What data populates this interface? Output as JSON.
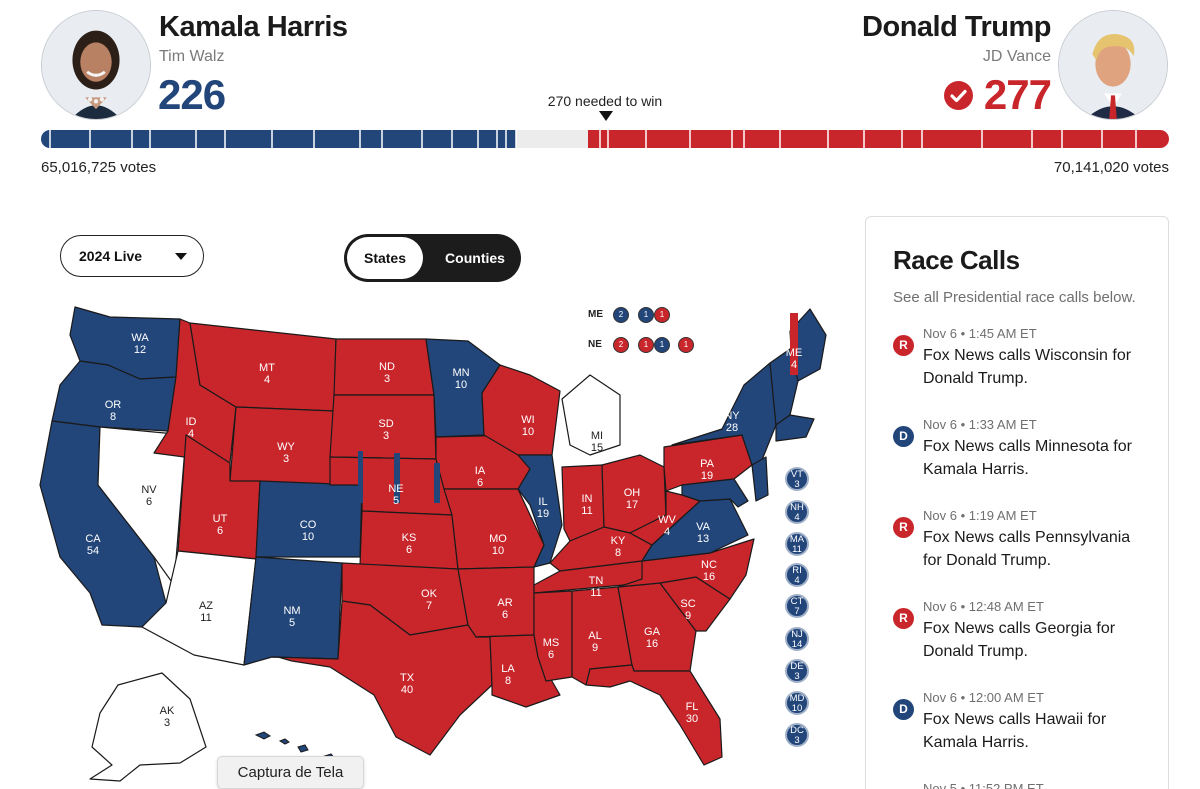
{
  "colors": {
    "dem": "#22457a",
    "rep": "#c9262c",
    "uncalled": "#ffffff"
  },
  "header": {
    "dem": {
      "name": "Kamala Harris",
      "running_mate": "Tim Walz",
      "electoral_votes": "226",
      "popular_votes": "65,016,725 votes"
    },
    "rep": {
      "name": "Donald Trump",
      "running_mate": "JD Vance",
      "electoral_votes": "277",
      "popular_votes": "70,141,020 votes",
      "winner_icon": "check-circle-icon"
    },
    "needed_to_win": "270 needed to win",
    "progress": {
      "dem_share": 0.4209,
      "rep_share": 0.5149
    }
  },
  "controls": {
    "year_dropdown": "2024 Live",
    "toggle": {
      "states": "States",
      "counties": "Counties",
      "selected": "States"
    }
  },
  "map": {
    "states": [
      {
        "abbr": "WA",
        "ev": "12",
        "party": "D"
      },
      {
        "abbr": "OR",
        "ev": "8",
        "party": "D"
      },
      {
        "abbr": "CA",
        "ev": "54",
        "party": "D"
      },
      {
        "abbr": "NV",
        "ev": "6",
        "party": "U"
      },
      {
        "abbr": "ID",
        "ev": "4",
        "party": "R"
      },
      {
        "abbr": "MT",
        "ev": "4",
        "party": "R"
      },
      {
        "abbr": "WY",
        "ev": "3",
        "party": "R"
      },
      {
        "abbr": "UT",
        "ev": "6",
        "party": "R"
      },
      {
        "abbr": "AZ",
        "ev": "11",
        "party": "U"
      },
      {
        "abbr": "CO",
        "ev": "10",
        "party": "D"
      },
      {
        "abbr": "NM",
        "ev": "5",
        "party": "D"
      },
      {
        "abbr": "ND",
        "ev": "3",
        "party": "R"
      },
      {
        "abbr": "SD",
        "ev": "3",
        "party": "R"
      },
      {
        "abbr": "NE",
        "ev": "5",
        "party": "R"
      },
      {
        "abbr": "KS",
        "ev": "6",
        "party": "R"
      },
      {
        "abbr": "OK",
        "ev": "7",
        "party": "R"
      },
      {
        "abbr": "TX",
        "ev": "40",
        "party": "R"
      },
      {
        "abbr": "MN",
        "ev": "10",
        "party": "D"
      },
      {
        "abbr": "IA",
        "ev": "6",
        "party": "R"
      },
      {
        "abbr": "MO",
        "ev": "10",
        "party": "R"
      },
      {
        "abbr": "AR",
        "ev": "6",
        "party": "R"
      },
      {
        "abbr": "LA",
        "ev": "8",
        "party": "R"
      },
      {
        "abbr": "WI",
        "ev": "10",
        "party": "R"
      },
      {
        "abbr": "IL",
        "ev": "19",
        "party": "D"
      },
      {
        "abbr": "MI",
        "ev": "15",
        "party": "U"
      },
      {
        "abbr": "IN",
        "ev": "11",
        "party": "R"
      },
      {
        "abbr": "OH",
        "ev": "17",
        "party": "R"
      },
      {
        "abbr": "KY",
        "ev": "8",
        "party": "R"
      },
      {
        "abbr": "TN",
        "ev": "11",
        "party": "R"
      },
      {
        "abbr": "MS",
        "ev": "6",
        "party": "R"
      },
      {
        "abbr": "AL",
        "ev": "9",
        "party": "R"
      },
      {
        "abbr": "GA",
        "ev": "16",
        "party": "R"
      },
      {
        "abbr": "FL",
        "ev": "30",
        "party": "R"
      },
      {
        "abbr": "SC",
        "ev": "9",
        "party": "R"
      },
      {
        "abbr": "NC",
        "ev": "16",
        "party": "R"
      },
      {
        "abbr": "VA",
        "ev": "13",
        "party": "D"
      },
      {
        "abbr": "WV",
        "ev": "4",
        "party": "R"
      },
      {
        "abbr": "PA",
        "ev": "19",
        "party": "R"
      },
      {
        "abbr": "NY",
        "ev": "28",
        "party": "D"
      },
      {
        "abbr": "ME",
        "ev": "4",
        "party": "D"
      },
      {
        "abbr": "AK",
        "ev": "3",
        "party": "U"
      }
    ],
    "small_states": [
      {
        "abbr": "VT",
        "ev": "3"
      },
      {
        "abbr": "NH",
        "ev": "4"
      },
      {
        "abbr": "MA",
        "ev": "11"
      },
      {
        "abbr": "RI",
        "ev": "4"
      },
      {
        "abbr": "CT",
        "ev": "7"
      },
      {
        "abbr": "NJ",
        "ev": "14"
      },
      {
        "abbr": "DE",
        "ev": "3"
      },
      {
        "abbr": "MD",
        "ev": "10"
      },
      {
        "abbr": "DC",
        "ev": "3"
      }
    ],
    "splits": [
      {
        "state": "ME",
        "districts": [
          {
            "party": "D",
            "ev": "2"
          },
          {
            "party": "D",
            "ev": "1"
          },
          {
            "party": "R",
            "ev": "1"
          }
        ]
      },
      {
        "state": "NE",
        "districts": [
          {
            "party": "R",
            "ev": "2"
          },
          {
            "party": "R",
            "ev": "1"
          },
          {
            "party": "D",
            "ev": "1"
          },
          {
            "party": "R",
            "ev": "1"
          }
        ]
      }
    ]
  },
  "race_calls": {
    "title": "Race Calls",
    "subtitle": "See all Presidential race calls below.",
    "items": [
      {
        "party": "R",
        "time": "Nov 6 • 1:45 AM ET",
        "text": "Fox News calls Wisconsin for Donald Trump."
      },
      {
        "party": "D",
        "time": "Nov 6 • 1:33 AM ET",
        "text": "Fox News calls Minnesota for Kamala Harris."
      },
      {
        "party": "R",
        "time": "Nov 6 • 1:19 AM ET",
        "text": "Fox News calls Pennsylvania for Donald Trump."
      },
      {
        "party": "R",
        "time": "Nov 6 • 12:48 AM ET",
        "text": "Fox News calls Georgia for Donald Trump."
      },
      {
        "party": "D",
        "time": "Nov 6 • 12:00 AM ET",
        "text": "Fox News calls Hawaii for Kamala Harris."
      },
      {
        "party": "D",
        "time": "Nov 5 • 11:52 PM ET",
        "text": ""
      }
    ]
  },
  "tooltip": "Captura de Tela"
}
